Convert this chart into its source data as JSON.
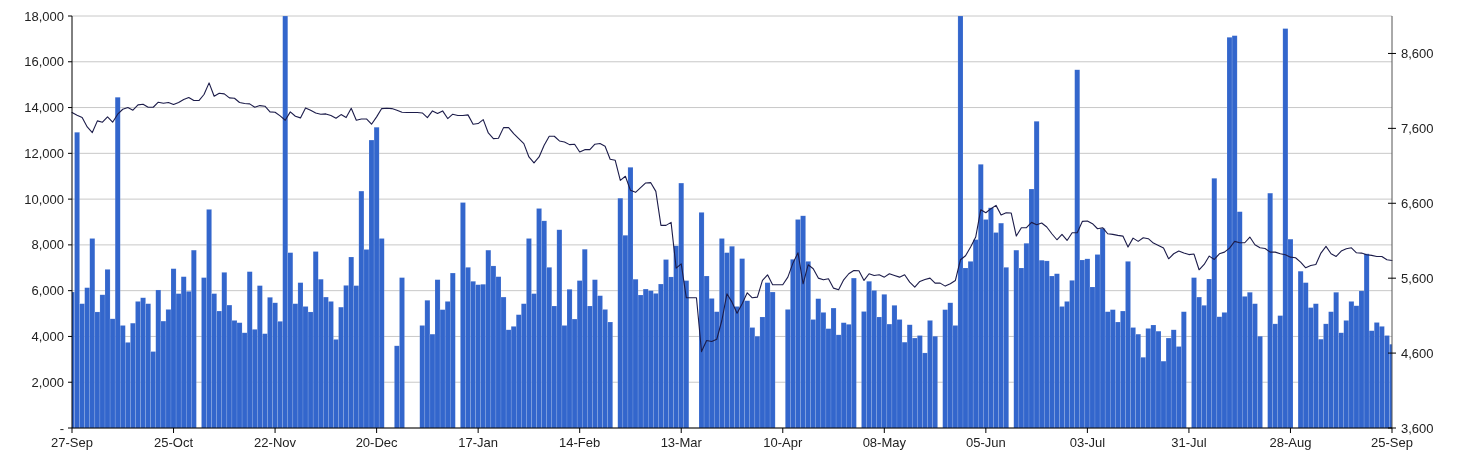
{
  "chart_data": {
    "type": "bar",
    "grid": "y",
    "categories": [
      "27-Sep",
      null,
      null,
      null,
      null,
      null,
      null,
      null,
      null,
      null,
      null,
      null,
      null,
      null,
      null,
      null,
      null,
      null,
      null,
      null,
      "25-Oct",
      null,
      null,
      null,
      null,
      null,
      null,
      null,
      null,
      null,
      null,
      null,
      null,
      null,
      null,
      null,
      null,
      null,
      null,
      null,
      "22-Nov",
      null,
      null,
      null,
      null,
      null,
      null,
      null,
      null,
      null,
      null,
      null,
      null,
      null,
      null,
      null,
      null,
      null,
      null,
      null,
      "20-Dec",
      null,
      null,
      null,
      null,
      null,
      null,
      null,
      null,
      null,
      null,
      null,
      null,
      null,
      null,
      null,
      null,
      null,
      null,
      null,
      "17-Jan",
      null,
      null,
      null,
      null,
      null,
      null,
      null,
      null,
      null,
      null,
      null,
      null,
      null,
      null,
      null,
      null,
      null,
      null,
      null,
      "14-Feb",
      null,
      null,
      null,
      null,
      null,
      null,
      null,
      null,
      null,
      null,
      null,
      null,
      null,
      null,
      null,
      null,
      null,
      null,
      null,
      "13-Mar",
      null,
      null,
      null,
      null,
      null,
      null,
      null,
      null,
      null,
      null,
      null,
      null,
      null,
      null,
      null,
      null,
      null,
      null,
      null,
      "10-Apr",
      null,
      null,
      null,
      null,
      null,
      null,
      null,
      null,
      null,
      null,
      null,
      null,
      null,
      null,
      null,
      null,
      null,
      null,
      null,
      "08-May",
      null,
      null,
      null,
      null,
      null,
      null,
      null,
      null,
      null,
      null,
      null,
      null,
      null,
      null,
      null,
      null,
      null,
      null,
      null,
      "05-Jun",
      null,
      null,
      null,
      null,
      null,
      null,
      null,
      null,
      null,
      null,
      null,
      null,
      null,
      null,
      null,
      null,
      null,
      null,
      null,
      "03-Jul",
      null,
      null,
      null,
      null,
      null,
      null,
      null,
      null,
      null,
      null,
      null,
      null,
      null,
      null,
      null,
      null,
      null,
      null,
      null,
      "31-Jul",
      null,
      null,
      null,
      null,
      null,
      null,
      null,
      null,
      null,
      null,
      null,
      null,
      null,
      null,
      null,
      null,
      null,
      null,
      null,
      "28-Aug",
      null,
      null,
      null,
      null,
      null,
      null,
      null,
      null,
      null,
      null,
      null,
      null,
      null,
      null,
      null,
      null,
      null,
      null,
      null,
      "25-Sep"
    ],
    "ylim": [
      0,
      18000
    ],
    "yticks": [
      {
        "value": 0,
        "label": "-"
      },
      {
        "value": 2000,
        "label": "2,000"
      },
      {
        "value": 4000,
        "label": "4,000"
      },
      {
        "value": 6000,
        "label": "6,000"
      },
      {
        "value": 8000,
        "label": "8,000"
      },
      {
        "value": 10000,
        "label": "10,000"
      },
      {
        "value": 12000,
        "label": "12,000"
      },
      {
        "value": 14000,
        "label": "14,000"
      },
      {
        "value": 16000,
        "label": "16,000"
      },
      {
        "value": 18000,
        "label": "18,000"
      }
    ],
    "y2lim": [
      3600,
      9100
    ],
    "y2ticks": [
      {
        "value": 3600,
        "label": "3,600"
      },
      {
        "value": 4600,
        "label": "4,600"
      },
      {
        "value": 5600,
        "label": "5,600"
      },
      {
        "value": 6600,
        "label": "6,600"
      },
      {
        "value": 7600,
        "label": "7,600"
      },
      {
        "value": 8600,
        "label": "8,600"
      }
    ],
    "series": [
      {
        "color": "#3366cc",
        "values": [
          5940,
          12920,
          5430,
          6130,
          8280,
          5070,
          5820,
          6930,
          4770,
          14450,
          4480,
          3740,
          4580,
          5530,
          5690,
          5430,
          3340,
          6030,
          4670,
          5180,
          6960,
          5870,
          6610,
          5970,
          7770,
          null,
          6570,
          9550,
          5870,
          5110,
          6800,
          5370,
          4700,
          4600,
          4160,
          6830,
          4310,
          6220,
          4120,
          5710,
          5470,
          4660,
          18000,
          7660,
          5430,
          6350,
          5310,
          5070,
          7710,
          6500,
          5720,
          5530,
          3870,
          5280,
          6230,
          7470,
          6220,
          10350,
          7800,
          12580,
          13140,
          8280,
          null,
          null,
          3590,
          6570,
          null,
          null,
          null,
          4480,
          5580,
          4100,
          6480,
          5170,
          5530,
          6770,
          null,
          9850,
          7020,
          6410,
          6260,
          6280,
          7770,
          7080,
          6610,
          5720,
          4290,
          4440,
          4950,
          5430,
          8280,
          5870,
          9590,
          9050,
          7020,
          5330,
          8660,
          4480,
          6060,
          4760,
          6440,
          7810,
          5330,
          6480,
          5780,
          5180,
          4630,
          null,
          10040,
          8420,
          11390,
          6500,
          5810,
          6070,
          6000,
          5880,
          6290,
          7360,
          6600,
          7960,
          10700,
          6440,
          null,
          null,
          9420,
          6640,
          5660,
          5080,
          8280,
          7660,
          7940,
          5310,
          7400,
          5560,
          4390,
          4010,
          4850,
          6350,
          5940,
          null,
          null,
          5180,
          7370,
          9110,
          9270,
          7280,
          4740,
          5650,
          5050,
          4340,
          5240,
          4070,
          4600,
          4530,
          6550,
          null,
          5090,
          6410,
          6010,
          4850,
          5840,
          4540,
          5360,
          4740,
          3750,
          4510,
          3930,
          4040,
          3280,
          4700,
          4010,
          null,
          5170,
          5470,
          4480,
          18000,
          6990,
          7280,
          8230,
          11520,
          9110,
          9620,
          8540,
          8950,
          7020,
          null,
          7770,
          6990,
          8070,
          10440,
          13400,
          7330,
          7300,
          6640,
          6740,
          5310,
          5530,
          6450,
          15650,
          7340,
          7390,
          6160,
          7580,
          8720,
          5080,
          5170,
          4630,
          5110,
          7280,
          4390,
          4100,
          3090,
          4350,
          4500,
          4230,
          2920,
          3930,
          4290,
          3560,
          5080,
          null,
          6570,
          5720,
          5360,
          6510,
          10910,
          4860,
          5050,
          17070,
          17140,
          9450,
          5750,
          5930,
          5430,
          4010,
          null,
          10260,
          4550,
          4910,
          17450,
          8250,
          null,
          6850,
          6350,
          5260,
          5430,
          3880,
          4550,
          5080,
          5930,
          4160,
          4700,
          5530,
          5340,
          5990,
          7610,
          4250,
          4610,
          4440,
          4040,
          3660
        ]
      },
      {
        "type": "line",
        "axis": "y2",
        "color": "#1c1c4a",
        "values": [
          7811,
          7775,
          7744,
          7619,
          7544,
          7700,
          7682,
          7753,
          7682,
          7789,
          7855,
          7878,
          7842,
          7913,
          7922,
          7882,
          7882,
          7949,
          7936,
          7945,
          7918,
          7945,
          7985,
          8011,
          7971,
          7971,
          8052,
          8207,
          8029,
          8069,
          8060,
          8007,
          8002,
          7945,
          7931,
          7927,
          7882,
          7904,
          7896,
          7820,
          7816,
          7766,
          7708,
          7820,
          7762,
          7740,
          7873,
          7842,
          7806,
          7789,
          7793,
          7771,
          7735,
          7784,
          7744,
          7869,
          7708,
          7726,
          7726,
          7655,
          7753,
          7864,
          7869,
          7864,
          7842,
          7816,
          7811,
          7811,
          7811,
          7806,
          7744,
          7833,
          7798,
          7833,
          7731,
          7789,
          7771,
          7771,
          7780,
          7655,
          7664,
          7717,
          7539,
          7463,
          7468,
          7610,
          7610,
          7530,
          7463,
          7397,
          7218,
          7138,
          7218,
          7374,
          7495,
          7495,
          7432,
          7419,
          7383,
          7388,
          7285,
          7316,
          7316,
          7388,
          7397,
          7361,
          7187,
          7174,
          6906,
          6960,
          6773,
          6746,
          6808,
          6871,
          6875,
          6759,
          6305,
          6305,
          6345,
          5734,
          5792,
          5338,
          5338,
          5338,
          4620,
          4767,
          4754,
          4785,
          5035,
          5391,
          5280,
          5133,
          5258,
          5405,
          5338,
          5347,
          5570,
          5645,
          5512,
          5512,
          5512,
          5614,
          5801,
          5939,
          5525,
          5779,
          5726,
          5601,
          5578,
          5592,
          5467,
          5445,
          5578,
          5659,
          5703,
          5699,
          5570,
          5659,
          5636,
          5645,
          5614,
          5659,
          5636,
          5614,
          5645,
          5547,
          5480,
          5556,
          5583,
          5601,
          5534,
          5534,
          5494,
          5525,
          5570,
          5846,
          5900,
          6015,
          6149,
          6514,
          6474,
          6528,
          6572,
          6443,
          6474,
          6470,
          6162,
          6274,
          6274,
          6345,
          6314,
          6336,
          6283,
          6193,
          6113,
          6185,
          6104,
          6207,
          6207,
          6358,
          6363,
          6327,
          6260,
          6274,
          6193,
          6185,
          6171,
          6162,
          6015,
          6135,
          6091,
          6140,
          6127,
          6069,
          6037,
          6002,
          5859,
          5926,
          5962,
          5935,
          5915,
          5922,
          5712,
          5783,
          5895,
          5850,
          5926,
          5948,
          6002,
          6091,
          6073,
          6073,
          6149,
          6046,
          6006,
          5997,
          5948,
          5948,
          5926,
          5913,
          5881,
          5873,
          5815,
          5739,
          5770,
          5783,
          5935,
          6024,
          5926,
          5890,
          5962,
          5993,
          6006,
          5939,
          5935,
          5913,
          5904,
          5890,
          5890,
          5846,
          5837
        ]
      }
    ]
  }
}
